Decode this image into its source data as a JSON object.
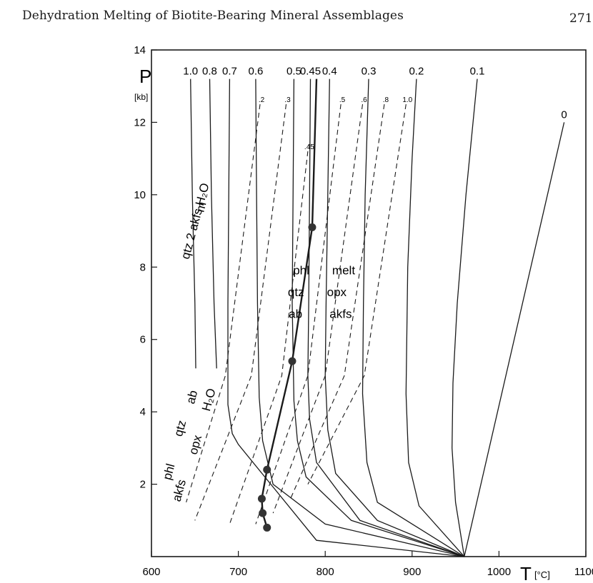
{
  "header": {
    "title": "Dehydration Melting of Biotite-Bearing Mineral Assemblages",
    "page_number": "271"
  },
  "chart_data": {
    "type": "line",
    "xlabel": "T",
    "xunit": "[°C]",
    "ylabel": "P",
    "yunit": "[kb]",
    "xlim": [
      600,
      1100
    ],
    "ylim": [
      0,
      14
    ],
    "x_ticks": [
      "600",
      "700",
      "800",
      "900",
      "1000",
      "1100"
    ],
    "y_ticks": [
      "2",
      "4",
      "6",
      "8",
      "10",
      "12",
      "14"
    ],
    "reaction_curve": {
      "style": "solid-bold",
      "points": [
        [
          733,
          0.8
        ],
        [
          728,
          1.2
        ],
        [
          727,
          1.6
        ],
        [
          733,
          2.4
        ],
        [
          762,
          5.4
        ],
        [
          785,
          9.1
        ],
        [
          790,
          13.2
        ]
      ],
      "invariant_points": [
        [
          733,
          0.8
        ],
        [
          728,
          1.2
        ],
        [
          727,
          1.6
        ],
        [
          733,
          2.4
        ],
        [
          762,
          5.4
        ],
        [
          785,
          9.1
        ]
      ]
    },
    "water_activity_isopleths": {
      "style": "solid",
      "labels": [
        "1.0",
        "0.8",
        "0.7",
        "0.6",
        "0.5",
        "0.45",
        "0.4",
        "0.3",
        "0.2",
        "0.1",
        "0"
      ],
      "series": [
        {
          "label": "1.0",
          "points": [
            [
              645,
              13.2
            ],
            [
              647,
              10.0
            ],
            [
              650,
              7.0
            ],
            [
              651,
              5.2
            ]
          ]
        },
        {
          "label": "0.8",
          "points": [
            [
              667,
              13.2
            ],
            [
              669,
              10.0
            ],
            [
              672,
              7.0
            ],
            [
              675,
              5.2
            ]
          ]
        },
        {
          "label": "0.7",
          "points": [
            [
              690,
              13.2
            ],
            [
              689,
              10.0
            ],
            [
              688,
              7.0
            ],
            [
              688,
              4.2
            ],
            [
              693,
              3.4
            ],
            [
              700,
              3.1
            ],
            [
              790,
              0.45
            ],
            [
              960,
              0.0
            ]
          ]
        },
        {
          "label": "0.6",
          "points": [
            [
              720,
              13.2
            ],
            [
              721,
              10.0
            ],
            [
              722,
              7.0
            ],
            [
              724,
              4.4
            ],
            [
              728,
              3.2
            ],
            [
              740,
              2.0
            ],
            [
              800,
              0.9
            ],
            [
              960,
              0.0
            ]
          ]
        },
        {
          "label": "0.5",
          "points": [
            [
              764,
              13.2
            ],
            [
              763,
              10.0
            ],
            [
              762,
              7.0
            ],
            [
              764,
              4.3
            ],
            [
              768,
              3.2
            ],
            [
              778,
              2.2
            ],
            [
              830,
              1.0
            ],
            [
              960,
              0.0
            ]
          ]
        },
        {
          "label": "0.45",
          "points": [
            [
              783,
              13.2
            ],
            [
              782,
              10.0
            ],
            [
              781,
              7.0
            ],
            [
              780,
              5.0
            ],
            [
              782,
              3.8
            ],
            [
              790,
              2.6
            ],
            [
              840,
              1.0
            ],
            [
              960,
              0.0
            ]
          ]
        },
        {
          "label": "0.4",
          "points": [
            [
              805,
              13.2
            ],
            [
              803,
              10.0
            ],
            [
              801,
              7.0
            ],
            [
              800,
              5.0
            ],
            [
              803,
              3.5
            ],
            [
              812,
              2.3
            ],
            [
              860,
              1.0
            ],
            [
              960,
              0.0
            ]
          ]
        },
        {
          "label": "0.3",
          "points": [
            [
              850,
              13.2
            ],
            [
              846,
              10.0
            ],
            [
              844,
              7.0
            ],
            [
              843,
              4.5
            ],
            [
              848,
              2.6
            ],
            [
              860,
              1.5
            ],
            [
              960,
              0.0
            ]
          ]
        },
        {
          "label": "0.2",
          "points": [
            [
              905,
              13.2
            ],
            [
              900,
              11.0
            ],
            [
              895,
              8.0
            ],
            [
              893,
              4.5
            ],
            [
              896,
              2.6
            ],
            [
              908,
              1.4
            ],
            [
              960,
              0.0
            ]
          ]
        },
        {
          "label": "0.1",
          "points": [
            [
              975,
              13.2
            ],
            [
              962,
              10.0
            ],
            [
              952,
              7.0
            ],
            [
              947,
              4.8
            ],
            [
              946,
              3.0
            ],
            [
              950,
              1.5
            ],
            [
              960,
              0.0
            ]
          ]
        },
        {
          "label": "0",
          "points": [
            [
              1075,
              12.0
            ],
            [
              960,
              0.0
            ]
          ]
        }
      ]
    },
    "dashed_isopleths": {
      "style": "dashed",
      "labels": [
        ".2",
        ".3",
        ".45",
        ".5",
        ".6",
        ".8",
        "1.0"
      ],
      "series": [
        {
          "label": ".2",
          "points": [
            [
              725,
              12.5
            ],
            [
              685,
              5.0
            ],
            [
              640,
              1.5
            ]
          ]
        },
        {
          "label": ".3",
          "points": [
            [
              755,
              12.5
            ],
            [
              715,
              5.0
            ],
            [
              650,
              1.0
            ]
          ]
        },
        {
          "label": ".45",
          "points": [
            [
              780,
              11.2
            ],
            [
              750,
              5.0
            ],
            [
              690,
              0.9
            ]
          ]
        },
        {
          "label": ".5",
          "points": [
            [
              818,
              12.5
            ],
            [
              780,
              5.0
            ],
            [
              720,
              0.9
            ]
          ]
        },
        {
          "label": ".6",
          "points": [
            [
              843,
              12.5
            ],
            [
              800,
              5.0
            ],
            [
              740,
              1.2
            ]
          ]
        },
        {
          "label": ".8",
          "points": [
            [
              868,
              12.5
            ],
            [
              822,
              5.0
            ],
            [
              760,
              1.6
            ]
          ]
        },
        {
          "label": "1.0",
          "points": [
            [
              893,
              12.5
            ],
            [
              845,
              5.0
            ],
            [
              780,
              2.0
            ]
          ]
        }
      ]
    },
    "annotations": [
      {
        "text": "qtz  2 akfs  H₂O",
        "x": 643,
        "y": 8.2
      },
      {
        "text": "m",
        "x": 660,
        "y": 9.5
      },
      {
        "text": "phl",
        "x": 763,
        "y": 7.8
      },
      {
        "text": "qtz",
        "x": 757,
        "y": 7.2
      },
      {
        "text": "ab",
        "x": 758,
        "y": 6.6
      },
      {
        "text": "melt",
        "x": 808,
        "y": 7.8
      },
      {
        "text": "opx",
        "x": 802,
        "y": 7.2
      },
      {
        "text": "akfs",
        "x": 805,
        "y": 6.6
      },
      {
        "text": "phl",
        "x": 622,
        "y": 2.1
      },
      {
        "text": "qtz",
        "x": 635,
        "y": 3.3
      },
      {
        "text": "ab",
        "x": 649,
        "y": 4.2
      },
      {
        "text": "akfs",
        "x": 633,
        "y": 1.5
      },
      {
        "text": "opx",
        "x": 652,
        "y": 2.8
      },
      {
        "text": "H₂O",
        "x": 667,
        "y": 4.0
      }
    ],
    "grid": false
  }
}
